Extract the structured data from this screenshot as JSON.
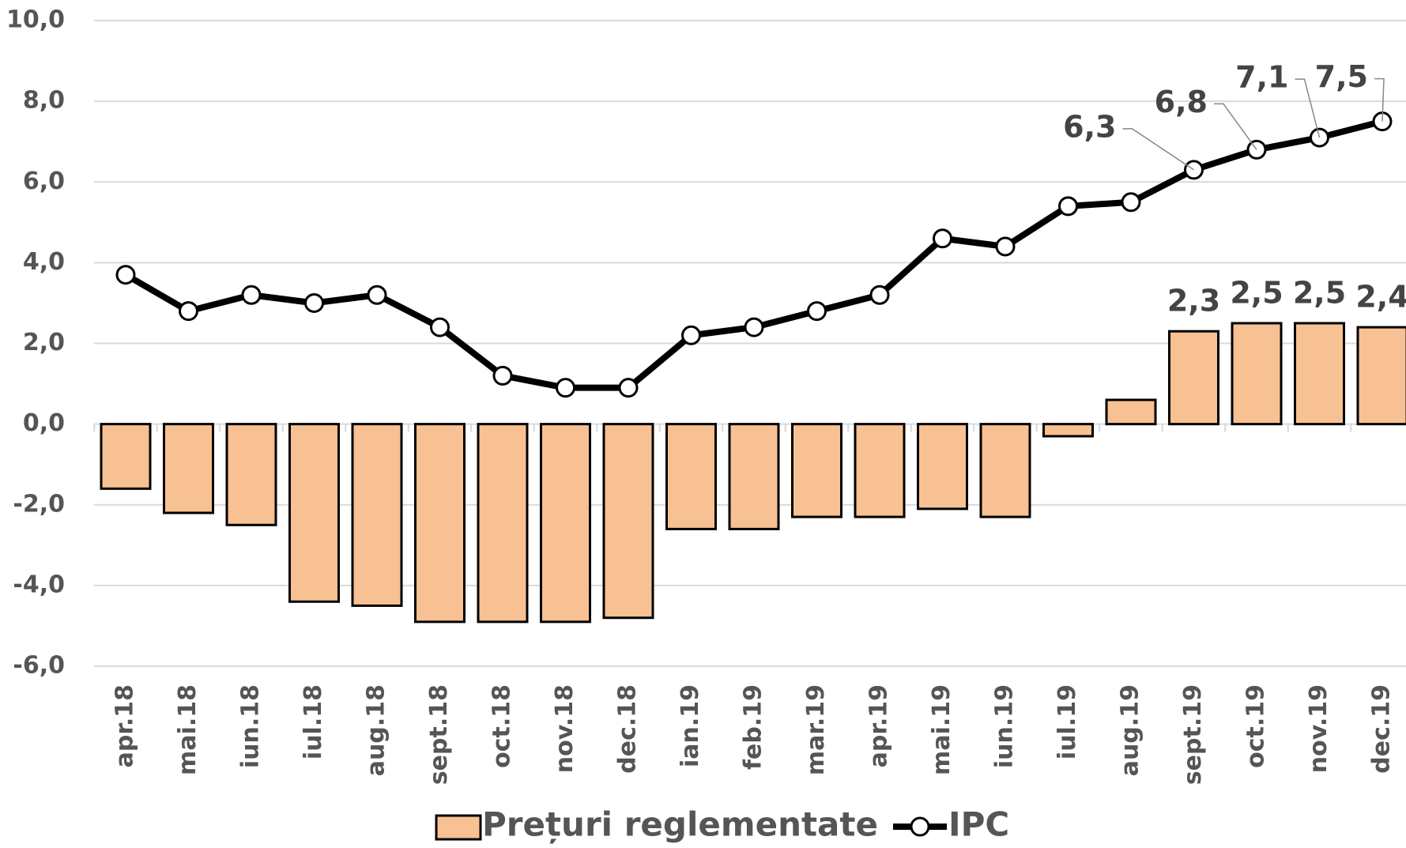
{
  "chart_data": {
    "type": "bar_line",
    "categories": [
      "apr.18",
      "mai.18",
      "iun.18",
      "iul.18",
      "aug.18",
      "sept.18",
      "oct.18",
      "nov.18",
      "dec.18",
      "ian.19",
      "feb.19",
      "mar.19",
      "apr.19",
      "mai.19",
      "iun.19",
      "iul.19",
      "aug.19",
      "sept.19",
      "oct.19",
      "nov.19",
      "dec.19"
    ],
    "series": [
      {
        "name": "Prețuri reglementate",
        "type": "bar",
        "color": "#f8c193",
        "values": [
          -1.6,
          -2.2,
          -2.5,
          -4.4,
          -4.5,
          -4.9,
          -4.9,
          -4.9,
          -4.8,
          -2.6,
          -2.6,
          -2.3,
          -2.3,
          -2.1,
          -2.3,
          -0.3,
          0.6,
          2.3,
          2.5,
          2.5,
          2.4
        ],
        "value_labels": [
          null,
          null,
          null,
          null,
          null,
          null,
          null,
          null,
          null,
          null,
          null,
          null,
          null,
          null,
          null,
          null,
          null,
          "2,3",
          "2,5",
          "2,5",
          "2,4"
        ]
      },
      {
        "name": "IPC",
        "type": "line",
        "color": "#000000",
        "values": [
          3.7,
          2.8,
          3.2,
          3.0,
          3.2,
          2.4,
          1.2,
          0.9,
          0.9,
          2.2,
          2.4,
          2.8,
          3.2,
          4.6,
          4.4,
          5.4,
          5.5,
          6.3,
          6.8,
          7.1,
          7.5
        ],
        "value_labels": [
          null,
          null,
          null,
          null,
          null,
          null,
          null,
          null,
          null,
          null,
          null,
          null,
          null,
          null,
          null,
          null,
          null,
          "6,3",
          "6,8",
          "7,1",
          "7,5"
        ]
      }
    ],
    "ylim": [
      -6,
      10
    ],
    "yticks": [
      {
        "value": -6,
        "label": "-6,0"
      },
      {
        "value": -4,
        "label": "-4,0"
      },
      {
        "value": -2,
        "label": "-2,0"
      },
      {
        "value": 0,
        "label": "0,0"
      },
      {
        "value": 2,
        "label": "2,0"
      },
      {
        "value": 4,
        "label": "4,0"
      },
      {
        "value": 6,
        "label": "6,0"
      },
      {
        "value": 8,
        "label": "8,0"
      },
      {
        "value": 10,
        "label": "10,0"
      }
    ],
    "grid": true
  }
}
